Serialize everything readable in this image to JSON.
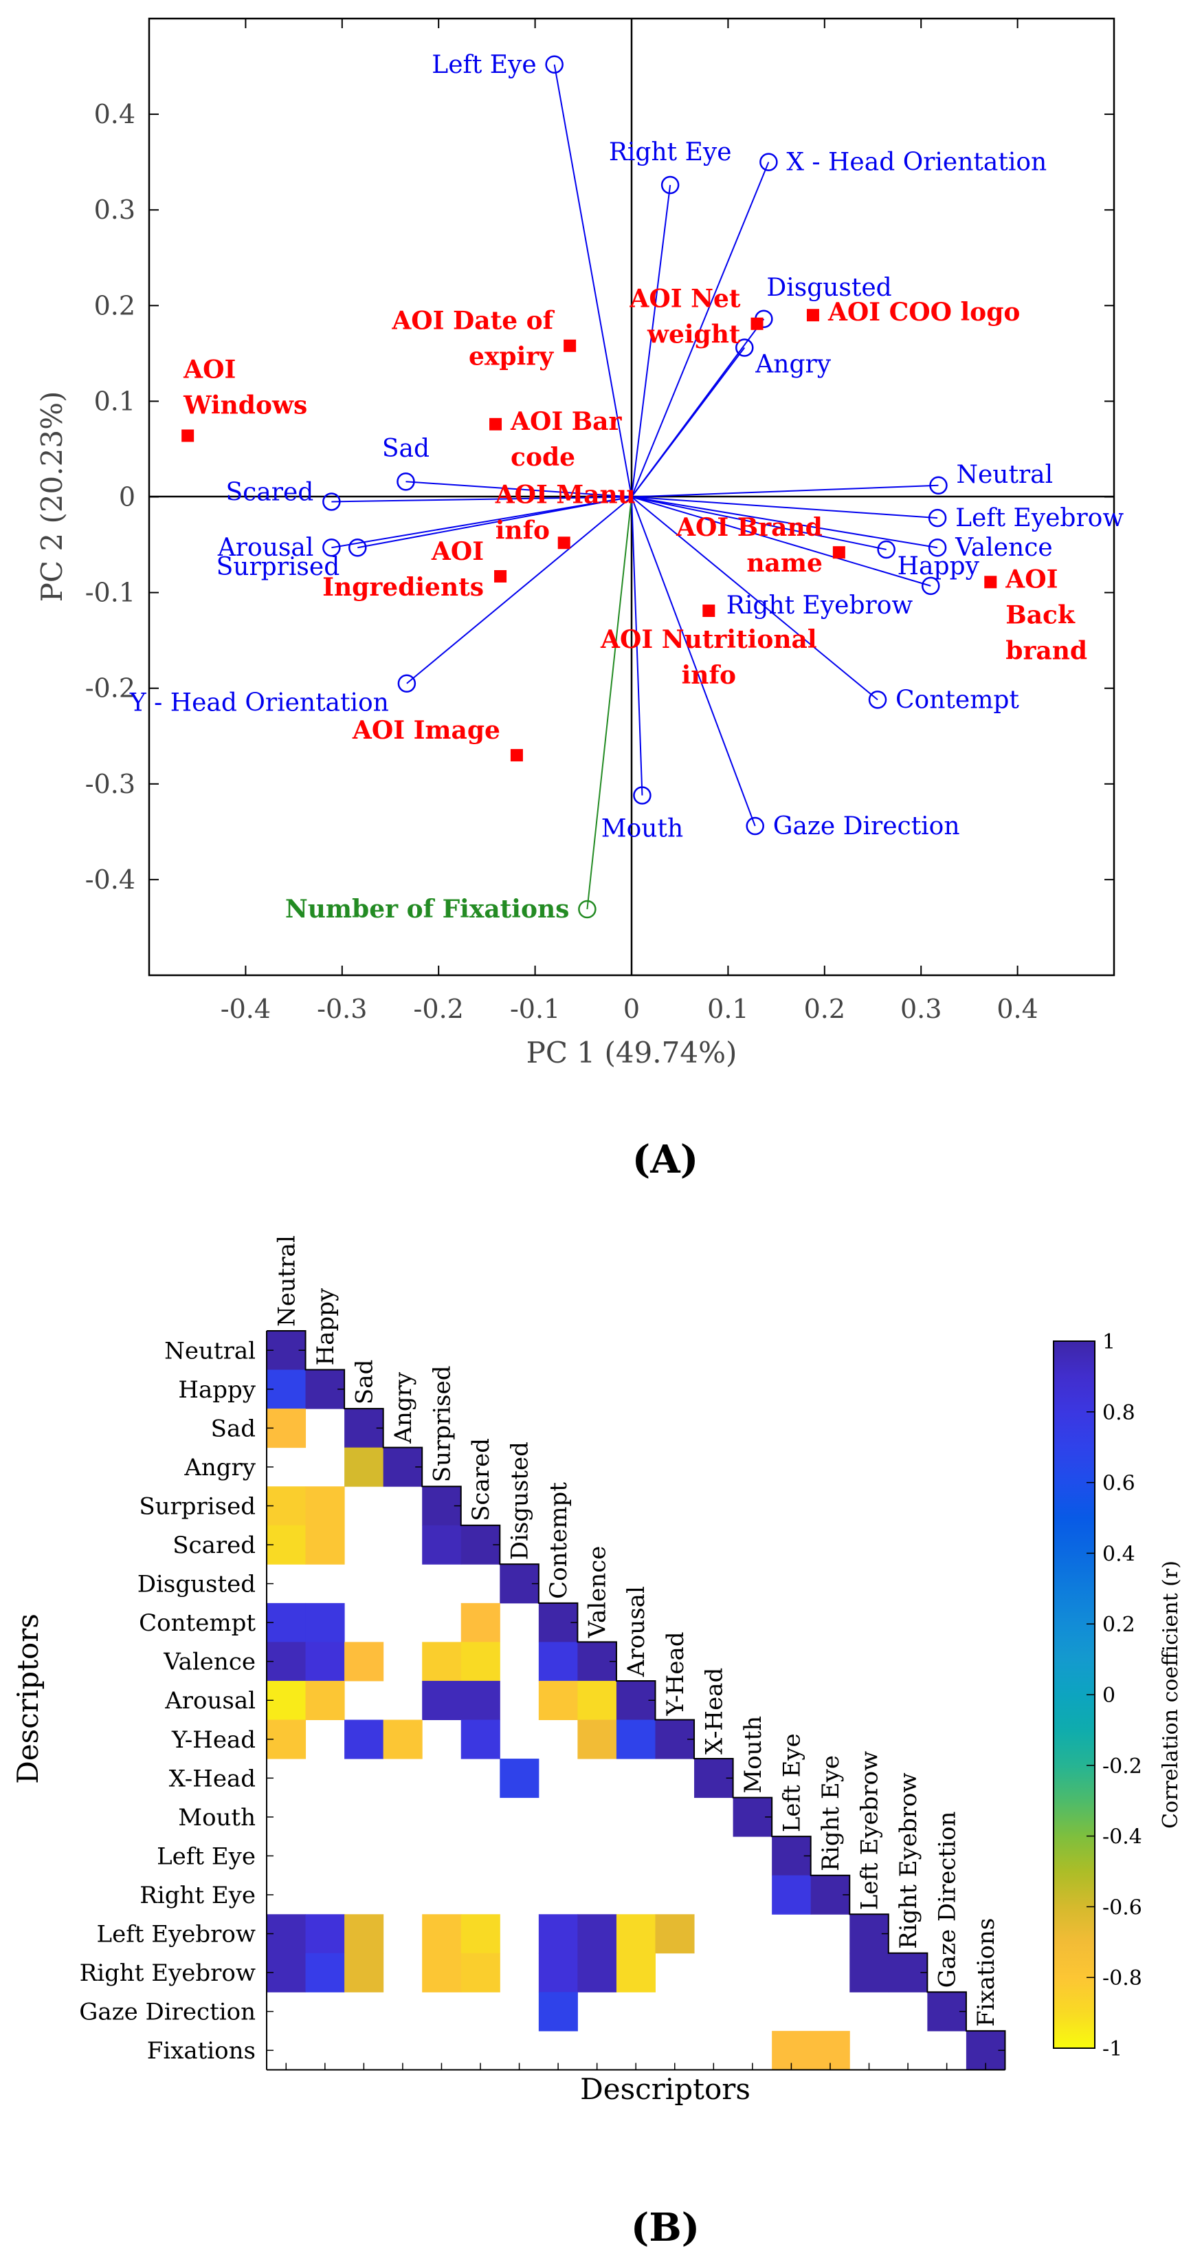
{
  "colors": {
    "loading": "#0000EE",
    "aoi": "#FF0000",
    "fixations": "#238B23",
    "axis": "#000000",
    "tick_text": "#444444"
  },
  "chart_data": [
    {
      "type": "scatter",
      "panel_label": "(A)",
      "title": "",
      "xlabel": "PC 1 (49.74%)",
      "ylabel": "PC 2 (20.23%)",
      "xlim": [
        -0.5,
        0.5
      ],
      "ylim": [
        -0.5,
        0.5
      ],
      "xticks": [
        -0.4,
        -0.3,
        -0.2,
        -0.1,
        0,
        0.1,
        0.2,
        0.3,
        0.4
      ],
      "xtick_labels": [
        "-0.4",
        "-0.3",
        "-0.2",
        "-0.1",
        "0",
        "0.1",
        "0.2",
        "0.3",
        "0.4"
      ],
      "yticks": [
        0.4,
        0.3,
        0.2,
        0.1,
        0,
        -0.1,
        -0.2,
        -0.3,
        -0.4
      ],
      "ytick_labels": [
        "0.4",
        "0.3",
        "0.2",
        "0.1",
        "0",
        "-0.1",
        "-0.2",
        "-0.3",
        "-0.4"
      ],
      "loadings": [
        {
          "label": "Left Eye",
          "x": -0.08,
          "y": 0.452,
          "anchor": "left"
        },
        {
          "label": "Right Eye",
          "x": 0.04,
          "y": 0.326,
          "anchor": "above"
        },
        {
          "label": "X - Head Orientation",
          "x": 0.142,
          "y": 0.35,
          "anchor": "right"
        },
        {
          "label": "Disgusted",
          "x": 0.137,
          "y": 0.186,
          "anchor": "above-right"
        },
        {
          "label": "Angry",
          "x": 0.117,
          "y": 0.156,
          "anchor": "right-low"
        },
        {
          "label": "Neutral",
          "x": 0.318,
          "y": 0.012,
          "anchor": "right-up"
        },
        {
          "label": "Left Eyebrow",
          "x": 0.317,
          "y": -0.022,
          "anchor": "right"
        },
        {
          "label": "Valence",
          "x": 0.317,
          "y": -0.053,
          "anchor": "right"
        },
        {
          "label": "Happy",
          "x": 0.264,
          "y": -0.055,
          "anchor": "right-low"
        },
        {
          "label": "Right Eyebrow",
          "x": 0.31,
          "y": -0.093,
          "anchor": "left-low"
        },
        {
          "label": "Contempt",
          "x": 0.255,
          "y": -0.212,
          "anchor": "right"
        },
        {
          "label": "Gaze Direction",
          "x": 0.128,
          "y": -0.344,
          "anchor": "right"
        },
        {
          "label": "Mouth",
          "x": 0.011,
          "y": -0.312,
          "anchor": "below"
        },
        {
          "label": "Y - Head Orientation",
          "x": -0.233,
          "y": -0.195,
          "anchor": "left-low"
        },
        {
          "label": "Surprised",
          "x": -0.284,
          "y": -0.053,
          "anchor": "left-low"
        },
        {
          "label": "Arousal",
          "x": -0.311,
          "y": -0.053,
          "anchor": "left"
        },
        {
          "label": "Scared",
          "x": -0.311,
          "y": -0.005,
          "anchor": "left-up"
        },
        {
          "label": "Sad",
          "x": -0.234,
          "y": 0.016,
          "anchor": "above"
        }
      ],
      "fixations": {
        "label": "Number of Fixations",
        "x": -0.046,
        "y": -0.431,
        "anchor": "left"
      },
      "aoi_points": [
        {
          "lines": [
            "AOI",
            "Windows"
          ],
          "x": -0.46,
          "y": 0.064,
          "anchor": "above-right"
        },
        {
          "lines": [
            "AOI Date of",
            "expiry"
          ],
          "x": -0.064,
          "y": 0.158,
          "anchor": "left"
        },
        {
          "lines": [
            "AOI Net",
            "weight"
          ],
          "x": 0.13,
          "y": 0.181,
          "anchor": "left"
        },
        {
          "lines": [
            "AOI COO logo"
          ],
          "x": 0.188,
          "y": 0.19,
          "anchor": "right"
        },
        {
          "lines": [
            "AOI Bar",
            "code"
          ],
          "x": -0.141,
          "y": 0.076,
          "anchor": "right"
        },
        {
          "lines": [
            "AOI Manu",
            "info"
          ],
          "x": -0.07,
          "y": -0.048,
          "anchor": "manu"
        },
        {
          "lines": [
            "AOI",
            "Ingredients"
          ],
          "x": -0.136,
          "y": -0.083,
          "anchor": "left"
        },
        {
          "lines": [
            "AOI Brand",
            "name"
          ],
          "x": 0.215,
          "y": -0.058,
          "anchor": "left"
        },
        {
          "lines": [
            "AOI",
            "Back",
            "brand"
          ],
          "x": 0.372,
          "y": -0.089,
          "anchor": "right"
        },
        {
          "lines": [
            "AOI Nutritional",
            "info"
          ],
          "x": 0.08,
          "y": -0.119,
          "anchor": "below"
        },
        {
          "lines": [
            "AOI Image"
          ],
          "x": -0.119,
          "y": -0.27,
          "anchor": "left"
        }
      ]
    },
    {
      "type": "heatmap",
      "panel_label": "(B)",
      "title": "",
      "xlabel": "Descriptors",
      "ylabel": "Descriptors",
      "colorbar_label": "Correlation coefficient (r)",
      "colorbar_ticks": [
        1,
        0.8,
        0.6,
        0.4,
        0.2,
        0,
        -0.2,
        -0.4,
        -0.6,
        -0.8,
        -1
      ],
      "colorbar_tick_labels": [
        "1",
        "0.8",
        "0.6",
        "0.4",
        "0.2",
        "0",
        "-0.2",
        "-0.4",
        "-0.6",
        "-0.8",
        "-1"
      ],
      "row_labels": [
        "Neutral",
        "Happy",
        "Sad",
        "Angry",
        "Surprised",
        "Scared",
        "Disgusted",
        "Contempt",
        "Valence",
        "Arousal",
        "Y-Head",
        "X-Head",
        "Mouth",
        "Left Eye",
        "Right Eye",
        "Left Eyebrow",
        "Right Eyebrow",
        "Gaze Direction",
        "Fixations"
      ],
      "col_labels": [
        "Neutral",
        "Happy",
        "Sad",
        "Angry",
        "Surprised",
        "Scared",
        "Disgusted",
        "Contempt",
        "Valence",
        "Arousal",
        "Y-Head",
        "X-Head",
        "Mouth",
        "Left Eye",
        "Right Eye",
        "Left Eyebrow",
        "Right Eyebrow",
        "Gaze Direction",
        "Fixations"
      ],
      "cells": [
        {
          "row": 0,
          "col": 0,
          "r": 1
        },
        {
          "row": 1,
          "col": 0,
          "r": 0.7
        },
        {
          "row": 1,
          "col": 1,
          "r": 1
        },
        {
          "row": 2,
          "col": 0,
          "r": -0.75
        },
        {
          "row": 2,
          "col": 2,
          "r": 1
        },
        {
          "row": 3,
          "col": 2,
          "r": -0.6
        },
        {
          "row": 3,
          "col": 3,
          "r": 1
        },
        {
          "row": 4,
          "col": 0,
          "r": -0.85
        },
        {
          "row": 4,
          "col": 1,
          "r": -0.8
        },
        {
          "row": 4,
          "col": 4,
          "r": 1
        },
        {
          "row": 5,
          "col": 0,
          "r": -0.9
        },
        {
          "row": 5,
          "col": 1,
          "r": -0.8
        },
        {
          "row": 5,
          "col": 4,
          "r": 0.95
        },
        {
          "row": 5,
          "col": 5,
          "r": 1
        },
        {
          "row": 6,
          "col": 6,
          "r": 1
        },
        {
          "row": 7,
          "col": 0,
          "r": 0.8
        },
        {
          "row": 7,
          "col": 1,
          "r": 0.8
        },
        {
          "row": 7,
          "col": 5,
          "r": -0.75
        },
        {
          "row": 7,
          "col": 7,
          "r": 1
        },
        {
          "row": 8,
          "col": 0,
          "r": 0.95
        },
        {
          "row": 8,
          "col": 1,
          "r": 0.85
        },
        {
          "row": 8,
          "col": 2,
          "r": -0.75
        },
        {
          "row": 8,
          "col": 4,
          "r": -0.85
        },
        {
          "row": 8,
          "col": 5,
          "r": -0.9
        },
        {
          "row": 8,
          "col": 7,
          "r": 0.8
        },
        {
          "row": 8,
          "col": 8,
          "r": 1
        },
        {
          "row": 9,
          "col": 0,
          "r": -0.95
        },
        {
          "row": 9,
          "col": 1,
          "r": -0.8
        },
        {
          "row": 9,
          "col": 4,
          "r": 0.95
        },
        {
          "row": 9,
          "col": 5,
          "r": 0.95
        },
        {
          "row": 9,
          "col": 7,
          "r": -0.8
        },
        {
          "row": 9,
          "col": 8,
          "r": -0.9
        },
        {
          "row": 9,
          "col": 9,
          "r": 1
        },
        {
          "row": 10,
          "col": 0,
          "r": -0.8
        },
        {
          "row": 10,
          "col": 2,
          "r": 0.8
        },
        {
          "row": 10,
          "col": 3,
          "r": -0.8
        },
        {
          "row": 10,
          "col": 5,
          "r": 0.8
        },
        {
          "row": 10,
          "col": 8,
          "r": -0.7
        },
        {
          "row": 10,
          "col": 9,
          "r": 0.7
        },
        {
          "row": 10,
          "col": 10,
          "r": 1
        },
        {
          "row": 11,
          "col": 6,
          "r": 0.7
        },
        {
          "row": 11,
          "col": 11,
          "r": 1
        },
        {
          "row": 12,
          "col": 12,
          "r": 1
        },
        {
          "row": 13,
          "col": 13,
          "r": 1
        },
        {
          "row": 14,
          "col": 13,
          "r": 0.8
        },
        {
          "row": 14,
          "col": 14,
          "r": 1
        },
        {
          "row": 15,
          "col": 0,
          "r": 0.95
        },
        {
          "row": 15,
          "col": 1,
          "r": 0.85
        },
        {
          "row": 15,
          "col": 2,
          "r": -0.65
        },
        {
          "row": 15,
          "col": 4,
          "r": -0.8
        },
        {
          "row": 15,
          "col": 5,
          "r": -0.9
        },
        {
          "row": 15,
          "col": 7,
          "r": 0.85
        },
        {
          "row": 15,
          "col": 8,
          "r": 0.95
        },
        {
          "row": 15,
          "col": 9,
          "r": -0.9
        },
        {
          "row": 15,
          "col": 10,
          "r": -0.65
        },
        {
          "row": 15,
          "col": 15,
          "r": 1
        },
        {
          "row": 16,
          "col": 0,
          "r": 0.95
        },
        {
          "row": 16,
          "col": 1,
          "r": 0.75
        },
        {
          "row": 16,
          "col": 2,
          "r": -0.65
        },
        {
          "row": 16,
          "col": 4,
          "r": -0.8
        },
        {
          "row": 16,
          "col": 5,
          "r": -0.85
        },
        {
          "row": 16,
          "col": 7,
          "r": 0.85
        },
        {
          "row": 16,
          "col": 8,
          "r": 0.95
        },
        {
          "row": 16,
          "col": 9,
          "r": -0.9
        },
        {
          "row": 16,
          "col": 15,
          "r": 1
        },
        {
          "row": 16,
          "col": 16,
          "r": 1
        },
        {
          "row": 17,
          "col": 7,
          "r": 0.7
        },
        {
          "row": 17,
          "col": 17,
          "r": 1
        },
        {
          "row": 18,
          "col": 13,
          "r": -0.75
        },
        {
          "row": 18,
          "col": 14,
          "r": -0.75
        },
        {
          "row": 18,
          "col": 18,
          "r": 1
        }
      ]
    }
  ]
}
